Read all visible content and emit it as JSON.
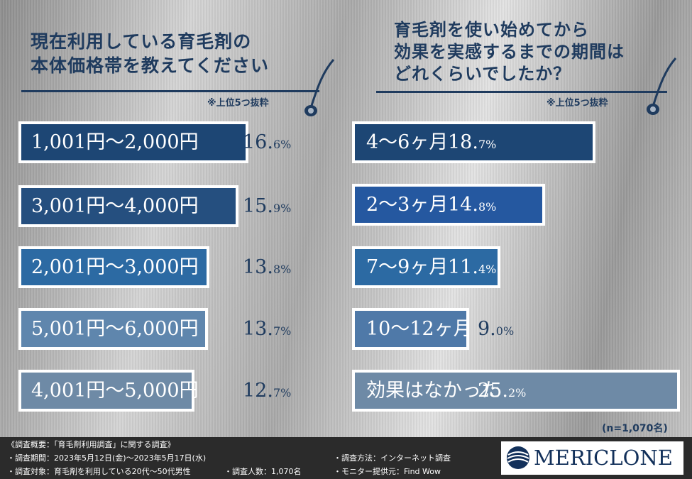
{
  "left_panel": {
    "title_line1": "現在利用している育毛剤の",
    "title_line2": "本体価格帯を教えてください",
    "note": "※上位5つ抜粋"
  },
  "right_panel": {
    "title_line1": "育毛剤を使い始めてから",
    "title_line2": "効果を実感するまでの期間は",
    "title_line3": "どれくらいでしたか？",
    "note": "※上位5つ抜粋"
  },
  "sample_size": "(n=1,070名)",
  "chart_data": [
    {
      "type": "bar",
      "orientation": "horizontal",
      "title": "現在利用している育毛剤の本体価格帯を教えてください",
      "categories": [
        "1,001円～2,000円",
        "3,001円～4,000円",
        "2,001円～3,000円",
        "5,001円～6,000円",
        "4,001円～5,000円"
      ],
      "values": [
        16.6,
        15.9,
        13.8,
        13.7,
        12.7
      ],
      "value_labels": [
        {
          "major": "16.",
          "minor": "6%"
        },
        {
          "major": "15.",
          "minor": "9%"
        },
        {
          "major": "13.",
          "minor": "8%"
        },
        {
          "major": "13.",
          "minor": "7%"
        },
        {
          "major": "12.",
          "minor": "7%"
        }
      ],
      "colors": [
        "#1d4674",
        "#254f7f",
        "#2c6aa3",
        "#5f86ad",
        "#6e8aa6"
      ],
      "unit": "%"
    },
    {
      "type": "bar",
      "orientation": "horizontal",
      "title": "育毛剤を使い始めてから効果を実感するまでの期間はどれくらいでしたか？",
      "categories": [
        "4～6ヶ月",
        "2～3ヶ月",
        "7～9ヶ月",
        "10～12ヶ月",
        "効果はなかった"
      ],
      "values": [
        18.7,
        14.8,
        11.4,
        9.0,
        25.2
      ],
      "value_labels": [
        {
          "major": "18.",
          "minor": "7%"
        },
        {
          "major": "14.",
          "minor": "8%"
        },
        {
          "major": "11.",
          "minor": "4%"
        },
        {
          "major": "9.",
          "minor": "0%"
        },
        {
          "major": "25.",
          "minor": "2%"
        }
      ],
      "colors": [
        "#1d4674",
        "#2558a0",
        "#2c6aa3",
        "#4f79a8",
        "#6e8aa6"
      ],
      "unit": "%"
    }
  ],
  "footer": {
    "overview": "《調査概要：「育毛剤利用調査」に関する調査》",
    "period": "・調査期間：2023年5月12日(金)～2023年5月17日(水)",
    "target": "・調査対象：育毛剤を利用している20代～50代男性",
    "count": "・調査人数：1,070名",
    "method": "・調査方法：インターネット調査",
    "provider": "・モニター提供元：Find Wow"
  },
  "logo": {
    "text": "MERICLONE",
    "color": "#12305a"
  }
}
